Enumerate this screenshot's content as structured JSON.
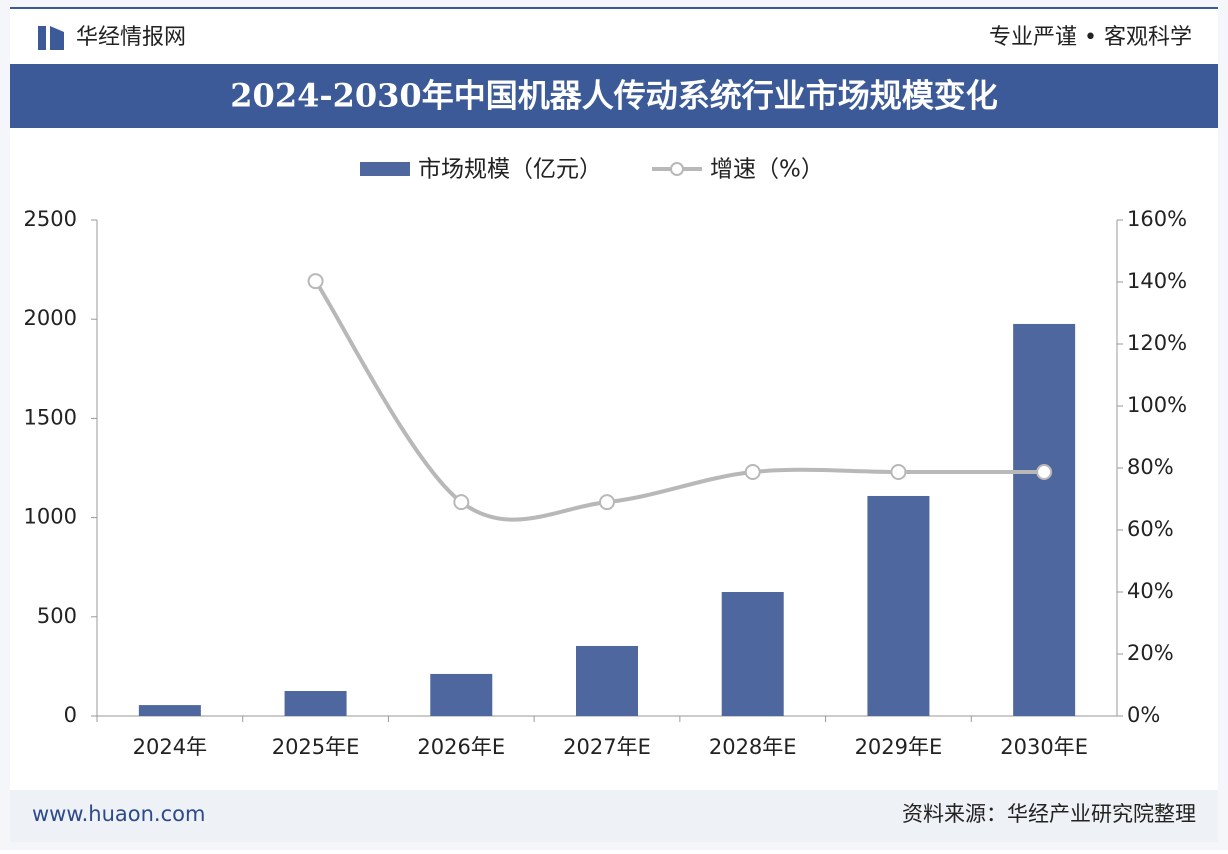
{
  "header": {
    "brand": "华经情报网",
    "slogan": "专业严谨 • 客观科学"
  },
  "chart_data": {
    "type": "bar-line",
    "title": "2024-2030年中国机器人传动系统行业市场规模变化",
    "categories": [
      "2024年",
      "2025年E",
      "2026年E",
      "2027年E",
      "2028年E",
      "2029年E",
      "2030年E"
    ],
    "series": [
      {
        "name": "市场规模（亿元）",
        "type": "bar",
        "color": "#4e679e",
        "values": [
          55,
          126,
          212,
          353,
          625,
          1109,
          1976
        ]
      },
      {
        "name": "增速（%）",
        "type": "line",
        "axis": "y2",
        "color": "#b8b8b8",
        "values": [
          null,
          140.3,
          69,
          69,
          78.7,
          78.7,
          78.7
        ]
      }
    ],
    "ylim": [
      0,
      2500
    ],
    "yticks": [
      0,
      500,
      1000,
      1500,
      2000,
      2500
    ],
    "y2lim": [
      0,
      160
    ],
    "y2ticks": [
      {
        "value": 0,
        "label": "0%"
      },
      {
        "value": 20,
        "label": "20%"
      },
      {
        "value": 40,
        "label": "40%"
      },
      {
        "value": 60,
        "label": "60%"
      },
      {
        "value": 80,
        "label": "80%"
      },
      {
        "value": 100,
        "label": "100%"
      },
      {
        "value": 120,
        "label": "120%"
      },
      {
        "value": 140,
        "label": "140%"
      },
      {
        "value": 160,
        "label": "160%"
      }
    ],
    "legend": "top"
  },
  "footer": {
    "website": "www.huaon.com",
    "source": "资料来源：华经产业研究院整理"
  }
}
